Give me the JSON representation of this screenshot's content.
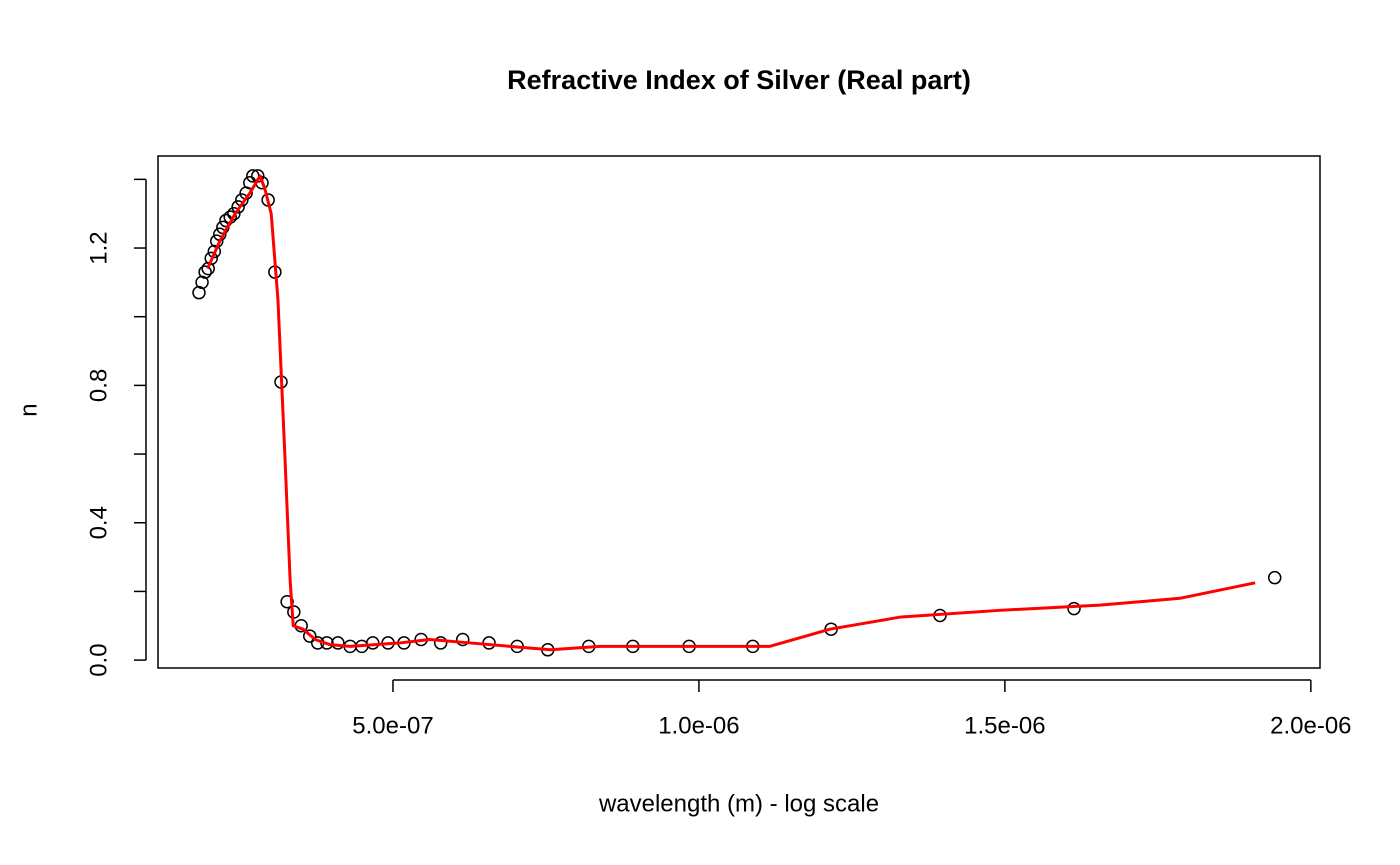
{
  "chart_data": {
    "type": "scatter",
    "title": "Refractive Index of Silver (Real part)",
    "x_label": "wavelength (m) - log scale",
    "y_label": "n",
    "color": "#000000",
    "x": [
      1.83e-07,
      1.88e-07,
      1.93e-07,
      1.98e-07,
      2.03e-07,
      2.08e-07,
      2.12e-07,
      2.17e-07,
      2.22e-07,
      2.27e-07,
      2.34e-07,
      2.4e-07,
      2.47e-07,
      2.53e-07,
      2.6e-07,
      2.66e-07,
      2.71e-07,
      2.79e-07,
      2.86e-07,
      2.96e-07,
      3.07e-07,
      3.17e-07,
      3.27e-07,
      3.38e-07,
      3.5e-07,
      3.64e-07,
      3.77e-07,
      3.92e-07,
      4.1e-07,
      4.3e-07,
      4.49e-07,
      4.67e-07,
      4.92e-07,
      5.18e-07,
      5.46e-07,
      5.78e-07,
      6.14e-07,
      6.57e-07,
      7.03e-07,
      7.53e-07,
      8.2e-07,
      8.92e-07,
      9.84e-07,
      1.088e-06,
      1.216e-06,
      1.394e-06,
      1.613e-06,
      1.941e-06
    ],
    "values": [
      1.07,
      1.1,
      1.13,
      1.14,
      1.17,
      1.19,
      1.22,
      1.24,
      1.26,
      1.28,
      1.29,
      1.3,
      1.32,
      1.34,
      1.36,
      1.39,
      1.41,
      1.41,
      1.39,
      1.34,
      1.13,
      0.81,
      0.17,
      0.14,
      0.1,
      0.07,
      0.05,
      0.05,
      0.05,
      0.04,
      0.04,
      0.05,
      0.05,
      0.05,
      0.06,
      0.05,
      0.06,
      0.05,
      0.04,
      0.03,
      0.04,
      0.04,
      0.04,
      0.04,
      0.09,
      0.13,
      0.15,
      0.24
    ],
    "fit": {
      "color": "#ff0000",
      "x": [
        1.97e-07,
        2.17e-07,
        2.42e-07,
        2.66e-07,
        2.83e-07,
        2.91e-07,
        3.01e-07,
        3.12e-07,
        3.23e-07,
        3.32e-07,
        3.37e-07,
        3.53e-07,
        3.73e-07,
        3.97e-07,
        4.3e-07,
        5.11e-07,
        5.6e-07,
        6.26e-07,
        6.91e-07,
        7.57e-07,
        8.38e-07,
        1.002e-06,
        1.116e-06,
        1.214e-06,
        1.328e-06,
        1.492e-06,
        1.655e-06,
        1.786e-06,
        1.909e-06
      ],
      "values": [
        1.14,
        1.22,
        1.3,
        1.36,
        1.41,
        1.37,
        1.3,
        1.05,
        0.61,
        0.23,
        0.1,
        0.09,
        0.06,
        0.045,
        0.04,
        0.05,
        0.06,
        0.05,
        0.04,
        0.03,
        0.04,
        0.04,
        0.04,
        0.09,
        0.125,
        0.145,
        0.16,
        0.18,
        0.225
      ]
    },
    "xlim": [
      1.16e-07,
      2.015e-06
    ],
    "ylim": [
      -0.023,
      1.468
    ],
    "xticks": [
      {
        "value": 5e-07,
        "label": "5.0e-07"
      },
      {
        "value": 1e-06,
        "label": "1.0e-06"
      },
      {
        "value": 1.5e-06,
        "label": "1.5e-06"
      },
      {
        "value": 2e-06,
        "label": "2.0e-06"
      }
    ],
    "yticks": [
      {
        "value": 0,
        "label": "0.0"
      },
      {
        "value": 0.2,
        "label": null
      },
      0.4,
      {
        "value": 0.6,
        "label": null
      },
      0.8,
      {
        "value": 1.0,
        "label": null
      },
      1.2,
      {
        "value": 1.4,
        "label": null
      }
    ],
    "grid": false
  }
}
